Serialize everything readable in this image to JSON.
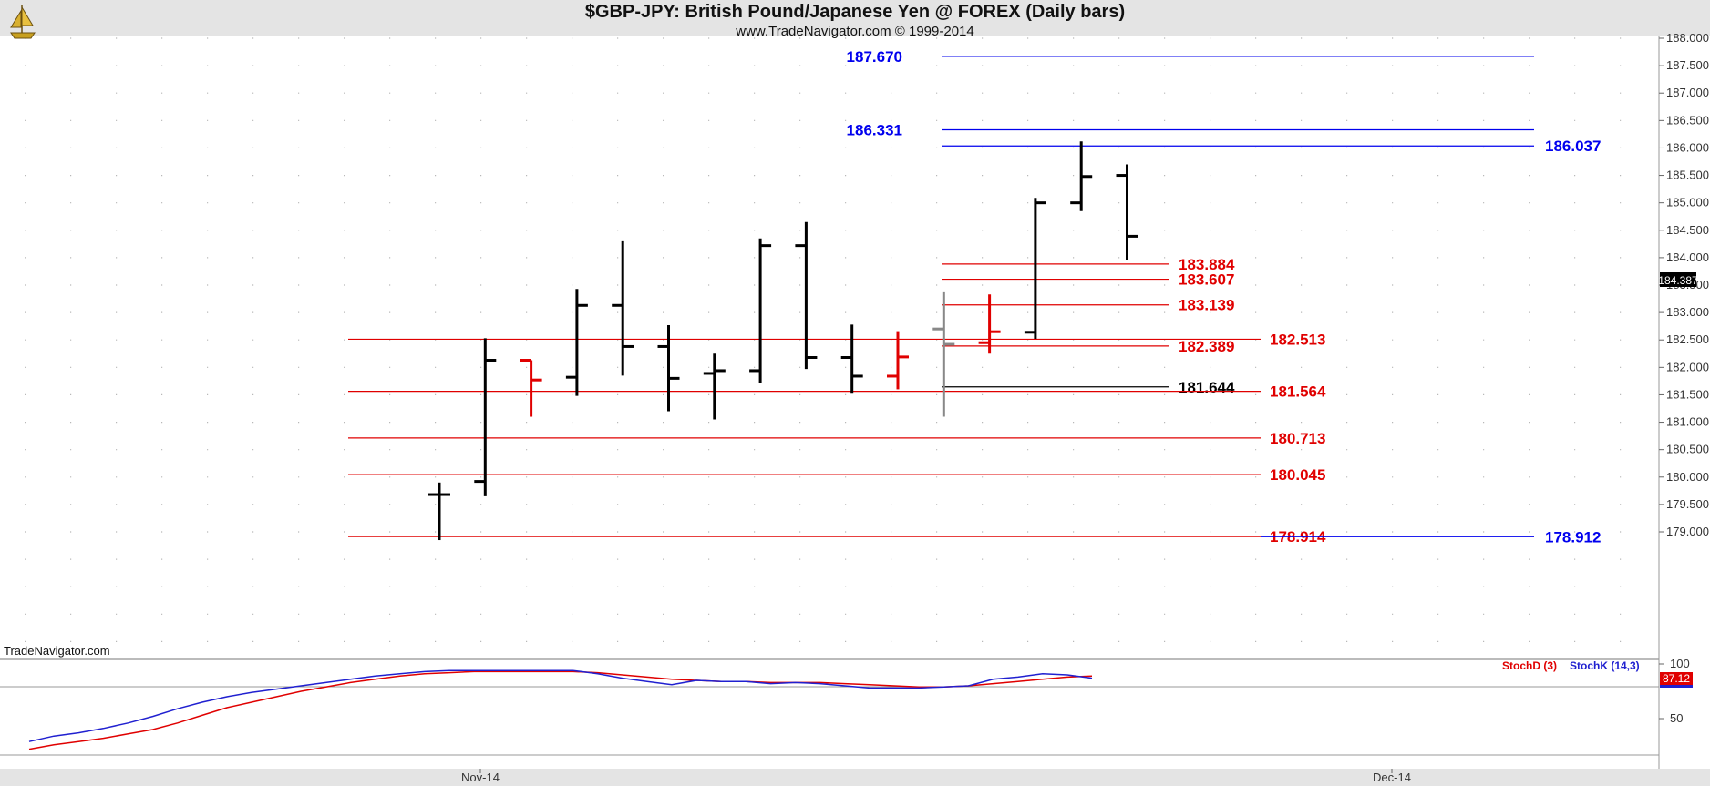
{
  "header": {
    "title": "$GBP-JPY:  British Pound/Japanese Yen @ FOREX  (Daily bars)",
    "subtitle": "www.TradeNavigator.com © 1999-2014"
  },
  "watermark": "TradeNavigator.com",
  "logo_icon": "sailing-ship-icon",
  "chart_data": [
    {
      "type": "ohlc",
      "ylim": [
        178.85,
        188.1
      ],
      "y_ticks": [
        "188.000",
        "187.500",
        "187.000",
        "186.500",
        "186.000",
        "185.500",
        "185.000",
        "184.500",
        "184.000",
        "183.500",
        "183.000",
        "182.500",
        "182.000",
        "181.500",
        "181.000",
        "180.500",
        "180.000",
        "179.500",
        "179.000"
      ],
      "last_price": "184.387",
      "x_labels": [
        "Nov-14",
        "Dec-14"
      ],
      "bars": [
        {
          "o": 179.68,
          "h": 179.9,
          "l": 178.85,
          "c": 179.68,
          "color": "#000000"
        },
        {
          "o": 179.92,
          "h": 182.53,
          "l": 179.65,
          "c": 182.13,
          "color": "#000000"
        },
        {
          "o": 182.13,
          "h": 182.13,
          "l": 181.1,
          "c": 181.77,
          "color": "#e00000"
        },
        {
          "o": 181.82,
          "h": 183.43,
          "l": 181.48,
          "c": 183.13,
          "color": "#000000"
        },
        {
          "o": 183.13,
          "h": 184.3,
          "l": 181.85,
          "c": 182.38,
          "color": "#000000"
        },
        {
          "o": 182.38,
          "h": 182.77,
          "l": 181.2,
          "c": 181.8,
          "color": "#000000"
        },
        {
          "o": 181.89,
          "h": 182.25,
          "l": 181.05,
          "c": 181.94,
          "color": "#000000"
        },
        {
          "o": 181.94,
          "h": 184.35,
          "l": 181.72,
          "c": 184.22,
          "color": "#000000"
        },
        {
          "o": 184.22,
          "h": 184.65,
          "l": 181.97,
          "c": 182.18,
          "color": "#000000"
        },
        {
          "o": 182.18,
          "h": 182.78,
          "l": 181.52,
          "c": 181.84,
          "color": "#000000"
        },
        {
          "o": 181.84,
          "h": 182.66,
          "l": 181.6,
          "c": 182.19,
          "color": "#e00000"
        },
        {
          "o": 182.7,
          "h": 183.37,
          "l": 181.1,
          "c": 182.42,
          "color": "#888888"
        },
        {
          "o": 182.45,
          "h": 183.33,
          "l": 182.25,
          "c": 182.65,
          "color": "#e00000"
        },
        {
          "o": 182.64,
          "h": 185.09,
          "l": 182.52,
          "c": 185.0,
          "color": "#000000"
        },
        {
          "o": 185.0,
          "h": 186.12,
          "l": 184.85,
          "c": 185.48,
          "color": "#000000"
        },
        {
          "o": 185.5,
          "h": 185.7,
          "l": 183.95,
          "c": 184.39,
          "color": "#000000"
        }
      ],
      "levels": [
        {
          "label": "187.670",
          "y": 187.67,
          "color": "#0000ee"
        },
        {
          "label": "186.331",
          "y": 186.331,
          "color": "#0000ee"
        },
        {
          "label": "186.037",
          "y": 186.037,
          "color": "#0000ee"
        },
        {
          "label": "183.884",
          "y": 183.884,
          "color": "#e00000"
        },
        {
          "label": "183.607",
          "y": 183.607,
          "color": "#e00000"
        },
        {
          "label": "183.139",
          "y": 183.139,
          "color": "#e00000"
        },
        {
          "label": "182.513",
          "y": 182.513,
          "color": "#e00000"
        },
        {
          "label": "182.389",
          "y": 182.389,
          "color": "#e00000"
        },
        {
          "label": "181.644",
          "y": 181.644,
          "color": "#000000"
        },
        {
          "label": "181.564",
          "y": 181.564,
          "color": "#e00000"
        },
        {
          "label": "180.713",
          "y": 180.713,
          "color": "#e00000"
        },
        {
          "label": "180.045",
          "y": 180.045,
          "color": "#e00000"
        },
        {
          "label": "178.914",
          "y": 178.914,
          "color": "#e00000"
        },
        {
          "label": "178.912",
          "y": 178.912,
          "color": "#0000ee"
        }
      ]
    },
    {
      "type": "line",
      "ylim": [
        10,
        100
      ],
      "y_ticks": [
        "100",
        "50"
      ],
      "last_value": "87.12",
      "legend": [
        "StochD (3)",
        "StochK (14,3)"
      ],
      "series": [
        {
          "name": "StochD (3)",
          "color": "#e00000",
          "values": [
            22,
            26,
            29,
            32,
            36,
            40,
            46,
            53,
            60,
            65,
            70,
            75,
            79,
            83,
            86,
            89,
            91,
            92,
            93,
            93,
            93,
            93,
            93,
            92,
            90,
            88,
            86,
            85,
            84,
            84,
            83,
            83,
            83,
            82,
            81,
            80,
            79,
            79,
            80,
            82,
            84,
            86,
            88,
            89
          ]
        },
        {
          "name": "StochK (14,3)",
          "color": "#2020d0",
          "values": [
            29,
            34,
            37,
            41,
            46,
            52,
            59,
            65,
            70,
            74,
            77,
            80,
            83,
            86,
            89,
            91,
            93,
            94,
            94,
            94,
            94,
            94,
            94,
            91,
            87,
            84,
            81,
            85,
            84,
            84,
            82,
            83,
            82,
            80,
            78,
            78,
            78,
            79,
            80,
            86,
            88,
            91,
            90,
            87
          ]
        }
      ]
    }
  ]
}
